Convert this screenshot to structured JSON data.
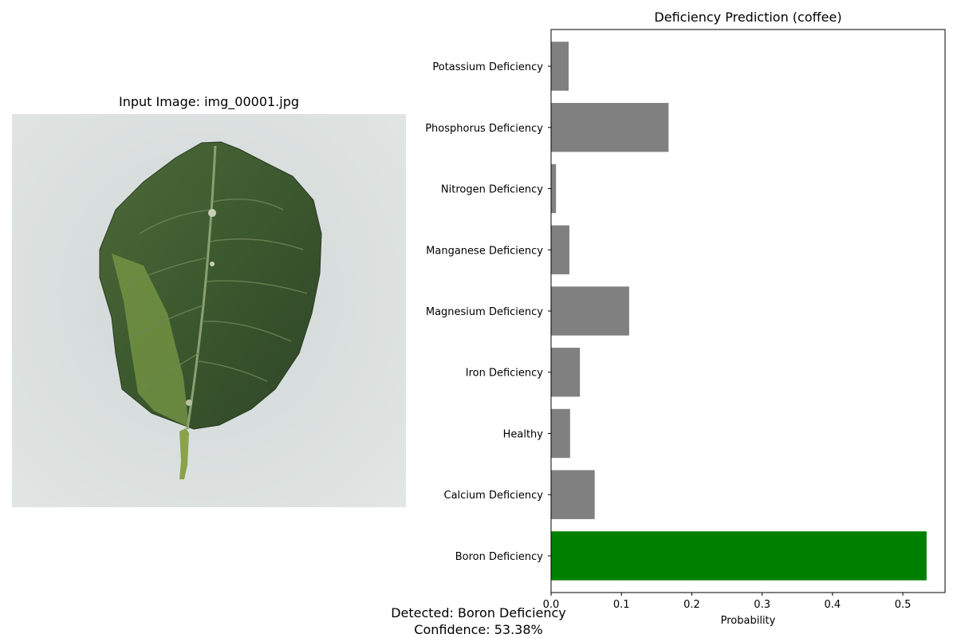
{
  "image_panel": {
    "title": "Input Image: img_00001.jpg"
  },
  "chart_data": {
    "type": "bar",
    "orientation": "horizontal",
    "title": "Deficiency Prediction (coffee)",
    "xlabel": "Probability",
    "ylabel": "",
    "categories": [
      "Boron Deficiency",
      "Calcium Deficiency",
      "Healthy",
      "Iron Deficiency",
      "Magnesium Deficiency",
      "Manganese Deficiency",
      "Nitrogen Deficiency",
      "Phosphorus Deficiency",
      "Potassium Deficiency"
    ],
    "values": [
      0.5338,
      0.062,
      0.027,
      0.041,
      0.111,
      0.026,
      0.007,
      0.167,
      0.025
    ],
    "highlight_index": 0,
    "colors": {
      "default": "#808080",
      "highlight": "#008000"
    },
    "xlim": [
      0,
      0.56
    ],
    "xticks": [
      0,
      0.1,
      0.2,
      0.3,
      0.4,
      0.5
    ],
    "xtick_labels": [
      "0.0",
      "0.1",
      "0.2",
      "0.3",
      "0.4",
      "0.5"
    ],
    "grid": false,
    "legend": "none"
  },
  "result": {
    "detected": "Detected: Boron Deficiency",
    "confidence": "Confidence: 53.38%"
  }
}
